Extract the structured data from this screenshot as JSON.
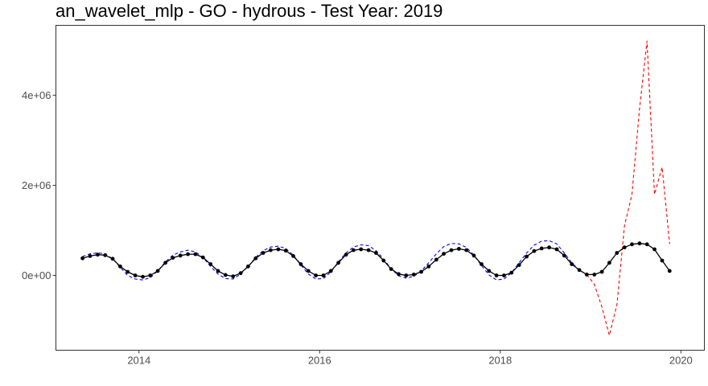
{
  "chart_data": {
    "type": "line",
    "title": "an_wavelet_mlp - GO - hydrous - Test Year: 2019",
    "xlabel": "",
    "ylabel": "",
    "x_ticks": [
      {
        "label": "2014",
        "value": 2014
      },
      {
        "label": "2016",
        "value": 2016
      },
      {
        "label": "2018",
        "value": 2018
      },
      {
        "label": "2020",
        "value": 2020
      }
    ],
    "y_ticks": [
      {
        "label": "0e+00",
        "value": 0
      },
      {
        "label": "2e+06",
        "value": 2000000
      },
      {
        "label": "4e+06",
        "value": 4000000
      }
    ],
    "xlim": [
      2013.08,
      2020.26
    ],
    "ylim": [
      -1660000,
      5550000
    ],
    "grid": false,
    "colors": {
      "observed": "#000000",
      "fitted": "#0000ff",
      "forecast": "#ff0000",
      "frame": "#333333"
    },
    "series": [
      {
        "role": "observed",
        "style": "solid-with-points",
        "points": [
          [
            2013.375,
            380000
          ],
          [
            2013.458,
            430000
          ],
          [
            2013.542,
            460000
          ],
          [
            2013.625,
            450000
          ],
          [
            2013.708,
            370000
          ],
          [
            2013.792,
            200000
          ],
          [
            2013.875,
            80000
          ],
          [
            2013.958,
            0
          ],
          [
            2014.042,
            -30000
          ],
          [
            2014.125,
            0
          ],
          [
            2014.208,
            100000
          ],
          [
            2014.292,
            280000
          ],
          [
            2014.375,
            390000
          ],
          [
            2014.458,
            440000
          ],
          [
            2014.542,
            470000
          ],
          [
            2014.625,
            470000
          ],
          [
            2014.708,
            400000
          ],
          [
            2014.792,
            250000
          ],
          [
            2014.875,
            100000
          ],
          [
            2014.958,
            10000
          ],
          [
            2015.042,
            -20000
          ],
          [
            2015.125,
            50000
          ],
          [
            2015.208,
            200000
          ],
          [
            2015.292,
            380000
          ],
          [
            2015.375,
            500000
          ],
          [
            2015.458,
            560000
          ],
          [
            2015.542,
            580000
          ],
          [
            2015.625,
            550000
          ],
          [
            2015.708,
            430000
          ],
          [
            2015.792,
            250000
          ],
          [
            2015.875,
            100000
          ],
          [
            2015.958,
            0
          ],
          [
            2016.042,
            0
          ],
          [
            2016.125,
            100000
          ],
          [
            2016.208,
            280000
          ],
          [
            2016.292,
            460000
          ],
          [
            2016.375,
            560000
          ],
          [
            2016.458,
            580000
          ],
          [
            2016.542,
            560000
          ],
          [
            2016.625,
            500000
          ],
          [
            2016.708,
            330000
          ],
          [
            2016.792,
            140000
          ],
          [
            2016.875,
            30000
          ],
          [
            2016.958,
            0
          ],
          [
            2017.042,
            20000
          ],
          [
            2017.125,
            80000
          ],
          [
            2017.208,
            200000
          ],
          [
            2017.292,
            350000
          ],
          [
            2017.375,
            480000
          ],
          [
            2017.458,
            560000
          ],
          [
            2017.542,
            590000
          ],
          [
            2017.625,
            560000
          ],
          [
            2017.708,
            440000
          ],
          [
            2017.792,
            250000
          ],
          [
            2017.875,
            100000
          ],
          [
            2017.958,
            0
          ],
          [
            2018.042,
            0
          ],
          [
            2018.125,
            60000
          ],
          [
            2018.208,
            230000
          ],
          [
            2018.292,
            420000
          ],
          [
            2018.375,
            540000
          ],
          [
            2018.458,
            600000
          ],
          [
            2018.542,
            620000
          ],
          [
            2018.625,
            580000
          ],
          [
            2018.708,
            440000
          ],
          [
            2018.792,
            250000
          ],
          [
            2018.875,
            120000
          ],
          [
            2018.958,
            20000
          ],
          [
            2019.042,
            20000
          ],
          [
            2019.125,
            80000
          ],
          [
            2019.208,
            280000
          ],
          [
            2019.292,
            500000
          ],
          [
            2019.375,
            620000
          ],
          [
            2019.458,
            690000
          ],
          [
            2019.542,
            710000
          ],
          [
            2019.625,
            690000
          ],
          [
            2019.708,
            580000
          ],
          [
            2019.792,
            330000
          ],
          [
            2019.875,
            100000
          ]
        ]
      },
      {
        "role": "fitted",
        "style": "dashed",
        "points": [
          [
            2013.375,
            420000
          ],
          [
            2013.458,
            480000
          ],
          [
            2013.542,
            500000
          ],
          [
            2013.625,
            480000
          ],
          [
            2013.708,
            370000
          ],
          [
            2013.792,
            180000
          ],
          [
            2013.875,
            0
          ],
          [
            2013.958,
            -80000
          ],
          [
            2014.042,
            -100000
          ],
          [
            2014.125,
            -50000
          ],
          [
            2014.208,
            100000
          ],
          [
            2014.292,
            300000
          ],
          [
            2014.375,
            450000
          ],
          [
            2014.458,
            520000
          ],
          [
            2014.542,
            560000
          ],
          [
            2014.625,
            520000
          ],
          [
            2014.708,
            400000
          ],
          [
            2014.792,
            200000
          ],
          [
            2014.875,
            30000
          ],
          [
            2014.958,
            -70000
          ],
          [
            2015.042,
            -80000
          ],
          [
            2015.125,
            30000
          ],
          [
            2015.208,
            200000
          ],
          [
            2015.292,
            400000
          ],
          [
            2015.375,
            550000
          ],
          [
            2015.458,
            630000
          ],
          [
            2015.542,
            650000
          ],
          [
            2015.625,
            600000
          ],
          [
            2015.708,
            450000
          ],
          [
            2015.792,
            230000
          ],
          [
            2015.875,
            30000
          ],
          [
            2015.958,
            -80000
          ],
          [
            2016.042,
            -70000
          ],
          [
            2016.125,
            80000
          ],
          [
            2016.208,
            300000
          ],
          [
            2016.292,
            500000
          ],
          [
            2016.375,
            630000
          ],
          [
            2016.458,
            680000
          ],
          [
            2016.542,
            660000
          ],
          [
            2016.625,
            550000
          ],
          [
            2016.708,
            360000
          ],
          [
            2016.792,
            150000
          ],
          [
            2016.875,
            -10000
          ],
          [
            2016.958,
            -60000
          ],
          [
            2017.042,
            -20000
          ],
          [
            2017.125,
            100000
          ],
          [
            2017.208,
            280000
          ],
          [
            2017.292,
            480000
          ],
          [
            2017.375,
            640000
          ],
          [
            2017.458,
            710000
          ],
          [
            2017.542,
            700000
          ],
          [
            2017.625,
            620000
          ],
          [
            2017.708,
            450000
          ],
          [
            2017.792,
            220000
          ],
          [
            2017.875,
            10000
          ],
          [
            2017.958,
            -100000
          ],
          [
            2018.042,
            -80000
          ],
          [
            2018.125,
            60000
          ],
          [
            2018.208,
            280000
          ],
          [
            2018.292,
            500000
          ],
          [
            2018.375,
            670000
          ],
          [
            2018.458,
            760000
          ],
          [
            2018.542,
            770000
          ],
          [
            2018.625,
            700000
          ],
          [
            2018.708,
            500000
          ],
          [
            2018.792,
            280000
          ],
          [
            2018.875,
            120000
          ]
        ]
      },
      {
        "role": "forecast",
        "style": "dashed",
        "points": [
          [
            2018.958,
            20000
          ],
          [
            2019.042,
            -200000
          ],
          [
            2019.125,
            -700000
          ],
          [
            2019.208,
            -1330000
          ],
          [
            2019.292,
            -650000
          ],
          [
            2019.375,
            1100000
          ],
          [
            2019.458,
            1800000
          ],
          [
            2019.542,
            3700000
          ],
          [
            2019.625,
            5200000
          ],
          [
            2019.708,
            1800000
          ],
          [
            2019.792,
            2400000
          ],
          [
            2019.875,
            700000
          ]
        ]
      }
    ]
  }
}
